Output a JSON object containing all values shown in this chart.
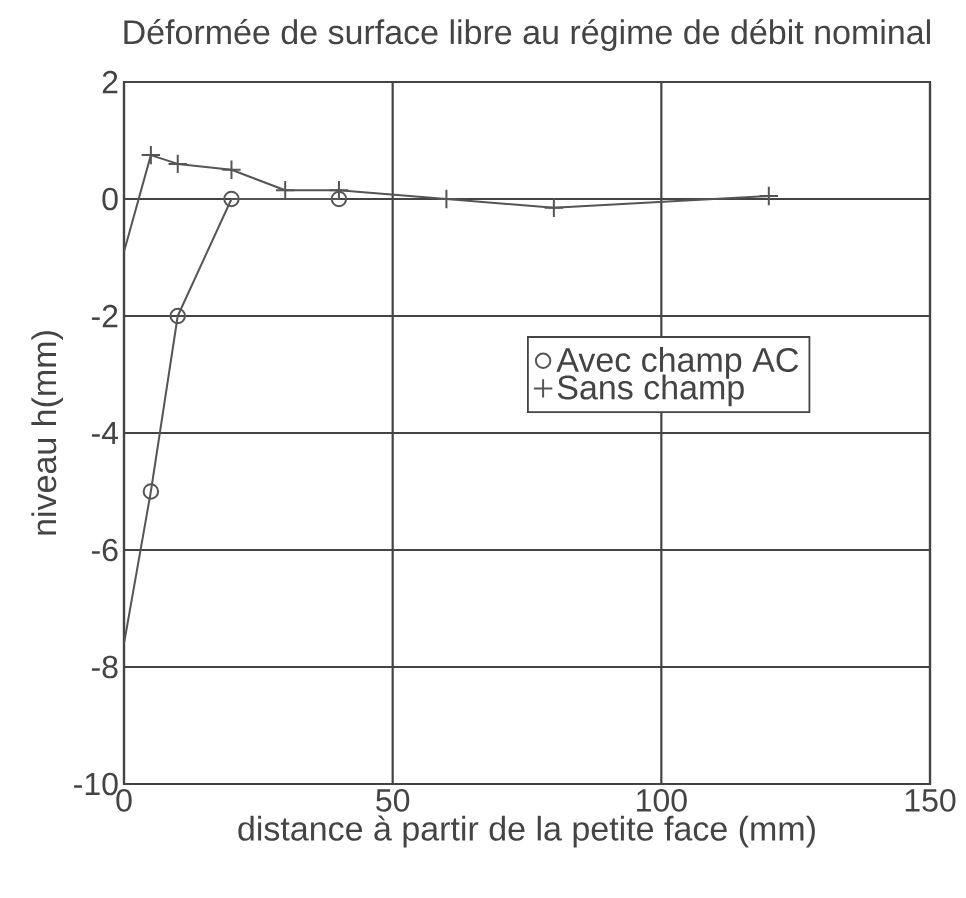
{
  "chart_data": {
    "type": "line",
    "title": "Déformée de surface libre au régime de débit nominal",
    "xlabel": "distance à partir de la petite face (mm)",
    "ylabel": "niveau h(mm)",
    "series": [
      {
        "name": "Avec champ AC",
        "color": "#555555",
        "marker": "circle",
        "x": [
          0,
          5,
          10,
          20,
          40
        ],
        "values": [
          -7.6,
          -5,
          -2,
          0,
          0
        ]
      },
      {
        "name": "Sans champ",
        "color": "#555555",
        "marker": "cross",
        "x": [
          0,
          5,
          10,
          20,
          30,
          40,
          60,
          80,
          120
        ],
        "values": [
          -0.9,
          0.75,
          0.6,
          0.5,
          0.15,
          0.15,
          0,
          -0.15,
          0.05
        ]
      }
    ],
    "xlim": [
      0,
      150
    ],
    "ylim": [
      -10,
      2
    ],
    "xticks": [
      0,
      50,
      100,
      150
    ],
    "yticks": [
      -10,
      -8,
      -6,
      -4,
      -2,
      0,
      2
    ],
    "grid": true,
    "legend": "right"
  }
}
